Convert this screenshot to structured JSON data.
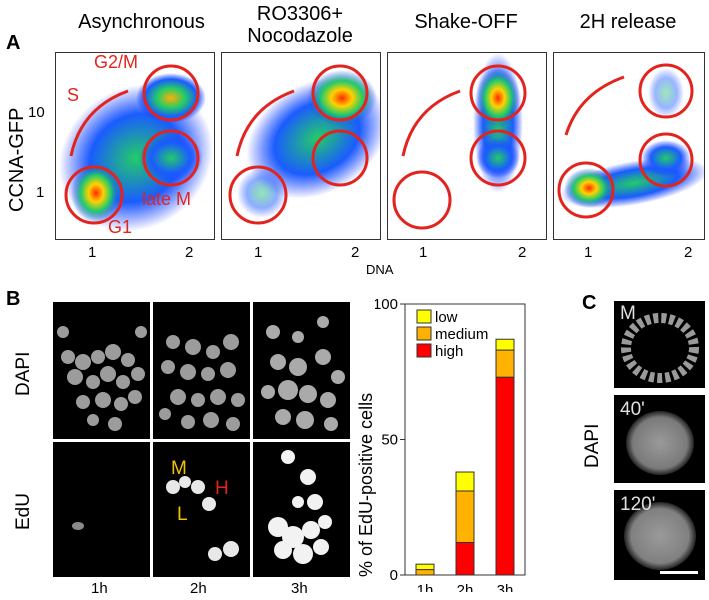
{
  "panelA": {
    "letter": "A",
    "columns": [
      "Asynchronous",
      "RO3306+\nNocodazole",
      "Shake-OFF",
      "2H release"
    ],
    "y_axis_label": "CCNA-GFP",
    "y_ticks": [
      "10",
      "1"
    ],
    "x_ticks": [
      "1",
      "2"
    ],
    "x_axis_label": "DNA",
    "phase_labels": {
      "S": "S",
      "G2M": "G2/M",
      "lateM": "late M",
      "G1": "G1"
    }
  },
  "panelB": {
    "letter": "B",
    "row_labels": [
      "DAPI",
      "EdU"
    ],
    "time_labels": [
      "1h",
      "2h",
      "3h"
    ],
    "intensity_markers": {
      "M": "M",
      "L": "L",
      "H": "H"
    },
    "colors": {
      "low": "#ffff00",
      "medium": "#ffb300",
      "high": "#ff0000"
    }
  },
  "chart_data": {
    "type": "bar",
    "categories": [
      "1h",
      "2h",
      "3h"
    ],
    "series": [
      {
        "name": "high",
        "values": [
          0,
          12,
          73
        ]
      },
      {
        "name": "medium",
        "values": [
          2,
          19,
          10
        ]
      },
      {
        "name": "low",
        "values": [
          2,
          7,
          4
        ]
      }
    ],
    "ylabel": "% of EdU-positive cells",
    "ylim": [
      0,
      100
    ],
    "yticks": [
      0,
      50,
      100
    ],
    "stacked": true,
    "legend": "top-left"
  },
  "panelC": {
    "letter": "C",
    "row_label": "DAPI",
    "time_labels": [
      "M",
      "40'",
      "120'"
    ]
  }
}
